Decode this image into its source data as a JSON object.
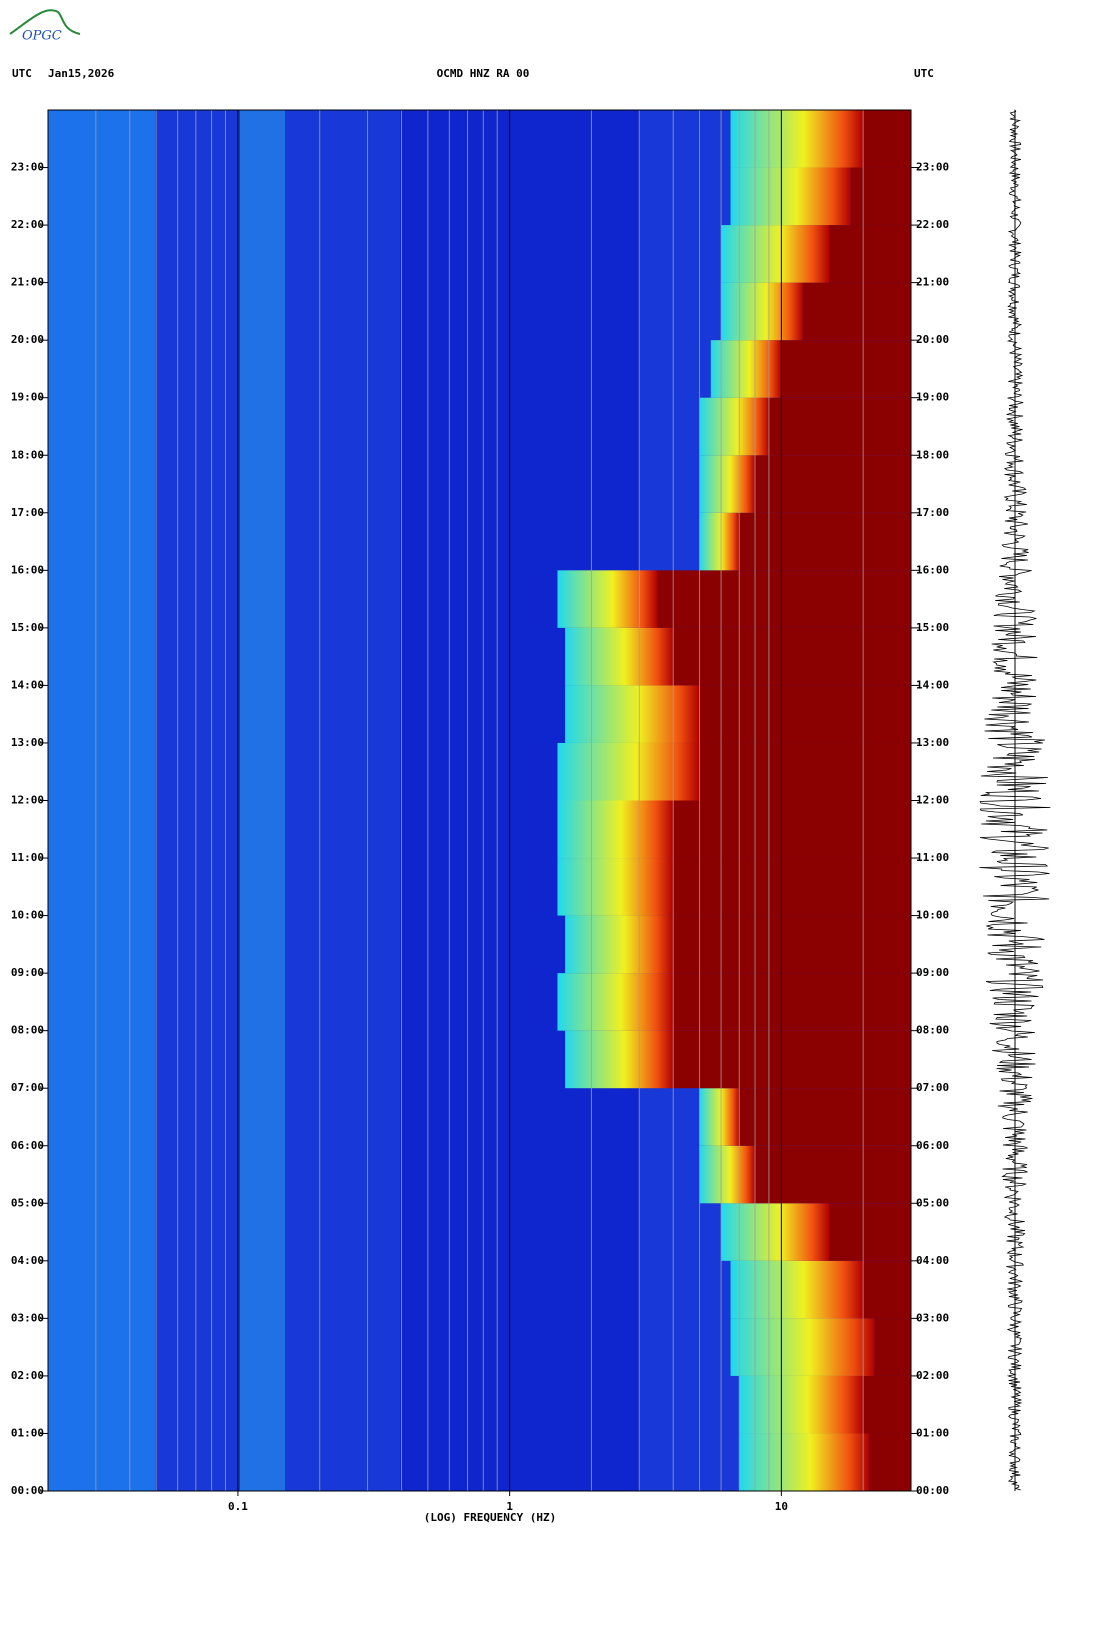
{
  "chart_data": {
    "type": "spectrogram",
    "logo": "OPGC",
    "time_zone": "UTC",
    "date": "Jan15,2026",
    "title": "OCMD HNZ RA 00",
    "x_label": "(LOG) FREQUENCY (HZ)",
    "x_log": true,
    "xlim": [
      0.02,
      30
    ],
    "xticks": [
      0.1,
      1,
      10
    ],
    "xminor": [
      0.02,
      0.03,
      0.04,
      0.05,
      0.06,
      0.07,
      0.08,
      0.09,
      0.2,
      0.3,
      0.4,
      0.5,
      0.6,
      0.7,
      0.8,
      0.9,
      2,
      3,
      4,
      5,
      6,
      7,
      8,
      9,
      20,
      30
    ],
    "ylim": [
      0,
      24
    ],
    "yticks": [
      {
        "value": 0,
        "label": "00:00"
      },
      {
        "value": 1,
        "label": "01:00"
      },
      {
        "value": 2,
        "label": "02:00"
      },
      {
        "value": 3,
        "label": "03:00"
      },
      {
        "value": 4,
        "label": "04:00"
      },
      {
        "value": 5,
        "label": "05:00"
      },
      {
        "value": 6,
        "label": "06:00"
      },
      {
        "value": 7,
        "label": "07:00"
      },
      {
        "value": 8,
        "label": "08:00"
      },
      {
        "value": 9,
        "label": "09:00"
      },
      {
        "value": 10,
        "label": "10:00"
      },
      {
        "value": 11,
        "label": "11:00"
      },
      {
        "value": 12,
        "label": "12:00"
      },
      {
        "value": 13,
        "label": "13:00"
      },
      {
        "value": 14,
        "label": "14:00"
      },
      {
        "value": 15,
        "label": "15:00"
      },
      {
        "value": 16,
        "label": "16:00"
      },
      {
        "value": 17,
        "label": "17:00"
      },
      {
        "value": 18,
        "label": "18:00"
      },
      {
        "value": 19,
        "label": "19:00"
      },
      {
        "value": 20,
        "label": "20:00"
      },
      {
        "value": 21,
        "label": "21:00"
      },
      {
        "value": 22,
        "label": "22:00"
      },
      {
        "value": 23,
        "label": "23:00"
      }
    ],
    "y_bins": [
      0,
      1,
      2,
      3,
      4,
      5,
      6,
      7,
      8,
      9,
      10,
      11,
      12,
      13,
      14,
      15,
      16,
      17,
      18,
      19,
      20,
      21,
      22,
      23,
      24
    ],
    "series": [
      {
        "color": "#20d8f0",
        "values": [
          7,
          7,
          6.5,
          6.5,
          6,
          5,
          5,
          1.6,
          1.5,
          1.6,
          1.5,
          1.5,
          1.5,
          1.6,
          1.6,
          1.5,
          5,
          5,
          5,
          5.5,
          6,
          6,
          6.5,
          6.5
        ]
      },
      {
        "color": "#8b0000",
        "values": [
          21,
          20,
          22,
          20,
          15,
          8,
          7,
          4,
          4,
          4,
          4,
          4,
          5,
          5,
          4,
          3.5,
          7,
          8,
          9,
          10,
          12,
          15,
          18,
          20
        ]
      }
    ]
  }
}
